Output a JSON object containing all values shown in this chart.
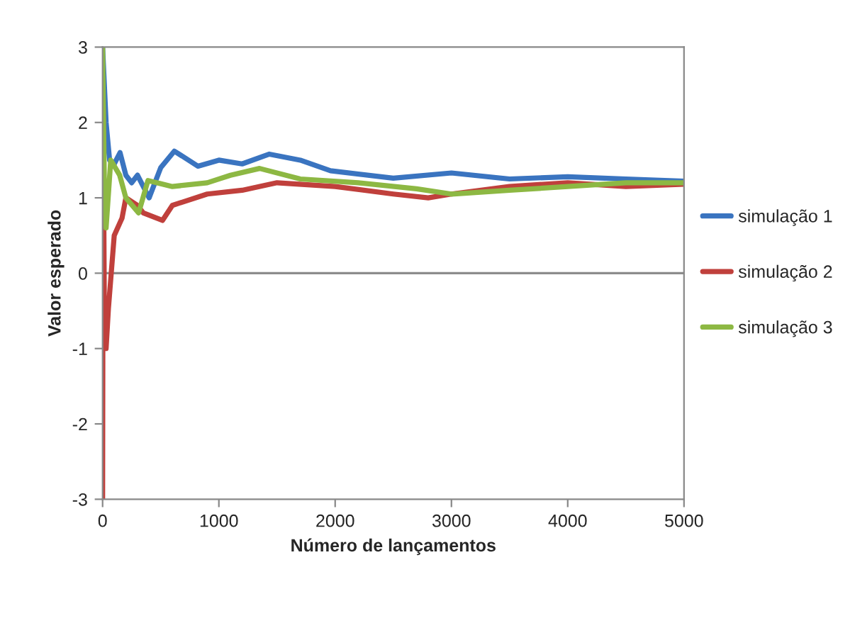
{
  "chart_data": {
    "type": "line",
    "xlabel": "Número de lançamentos",
    "ylabel": "Valor esperado",
    "xlim": [
      0,
      5000
    ],
    "ylim": [
      -3,
      3
    ],
    "xticks": [
      0,
      1000,
      2000,
      3000,
      4000,
      5000
    ],
    "yticks": [
      -3,
      -2,
      -1,
      0,
      1,
      2,
      3
    ],
    "grid": false,
    "legend": "right",
    "marker": "none",
    "line_style": "solid",
    "ref_lines": [
      {
        "axis": "y",
        "value": 0,
        "color": "#8c8c8c"
      }
    ],
    "series": [
      {
        "name": "simulação 1",
        "color": "#3a74c0",
        "x": [
          0,
          30,
          60,
          100,
          150,
          200,
          250,
          300,
          400,
          500,
          617,
          820,
          1000,
          1200,
          1434,
          1700,
          1960,
          2500,
          3000,
          3500,
          4000,
          4500,
          5000
        ],
        "values": [
          3,
          2,
          1.5,
          1.45,
          1.6,
          1.3,
          1.2,
          1.3,
          1.0,
          1.4,
          1.62,
          1.42,
          1.5,
          1.45,
          1.58,
          1.5,
          1.36,
          1.26,
          1.33,
          1.25,
          1.28,
          1.25,
          1.22
        ]
      },
      {
        "name": "simulação 2",
        "color": "#c0403c",
        "x": [
          0,
          5,
          15,
          30,
          50,
          100,
          167,
          200,
          300,
          350,
          515,
          600,
          900,
          1200,
          1500,
          2000,
          2500,
          2800,
          3000,
          3500,
          4000,
          4500,
          5000
        ],
        "values": [
          -3,
          2.2,
          -0.5,
          -1.0,
          -0.47,
          0.5,
          0.73,
          1.0,
          0.9,
          0.8,
          0.7,
          0.9,
          1.05,
          1.1,
          1.2,
          1.15,
          1.05,
          1.0,
          1.05,
          1.15,
          1.2,
          1.15,
          1.18
        ]
      },
      {
        "name": "simulação 3",
        "color": "#8db843",
        "x": [
          0,
          15,
          30,
          70,
          147,
          200,
          310,
          390,
          600,
          900,
          1100,
          1350,
          1700,
          2200,
          2700,
          3000,
          3500,
          4000,
          4500,
          5000
        ],
        "values": [
          3,
          1.2,
          0.6,
          1.5,
          1.3,
          1.0,
          0.8,
          1.23,
          1.15,
          1.2,
          1.3,
          1.39,
          1.25,
          1.2,
          1.12,
          1.05,
          1.1,
          1.15,
          1.2,
          1.2
        ]
      }
    ]
  }
}
